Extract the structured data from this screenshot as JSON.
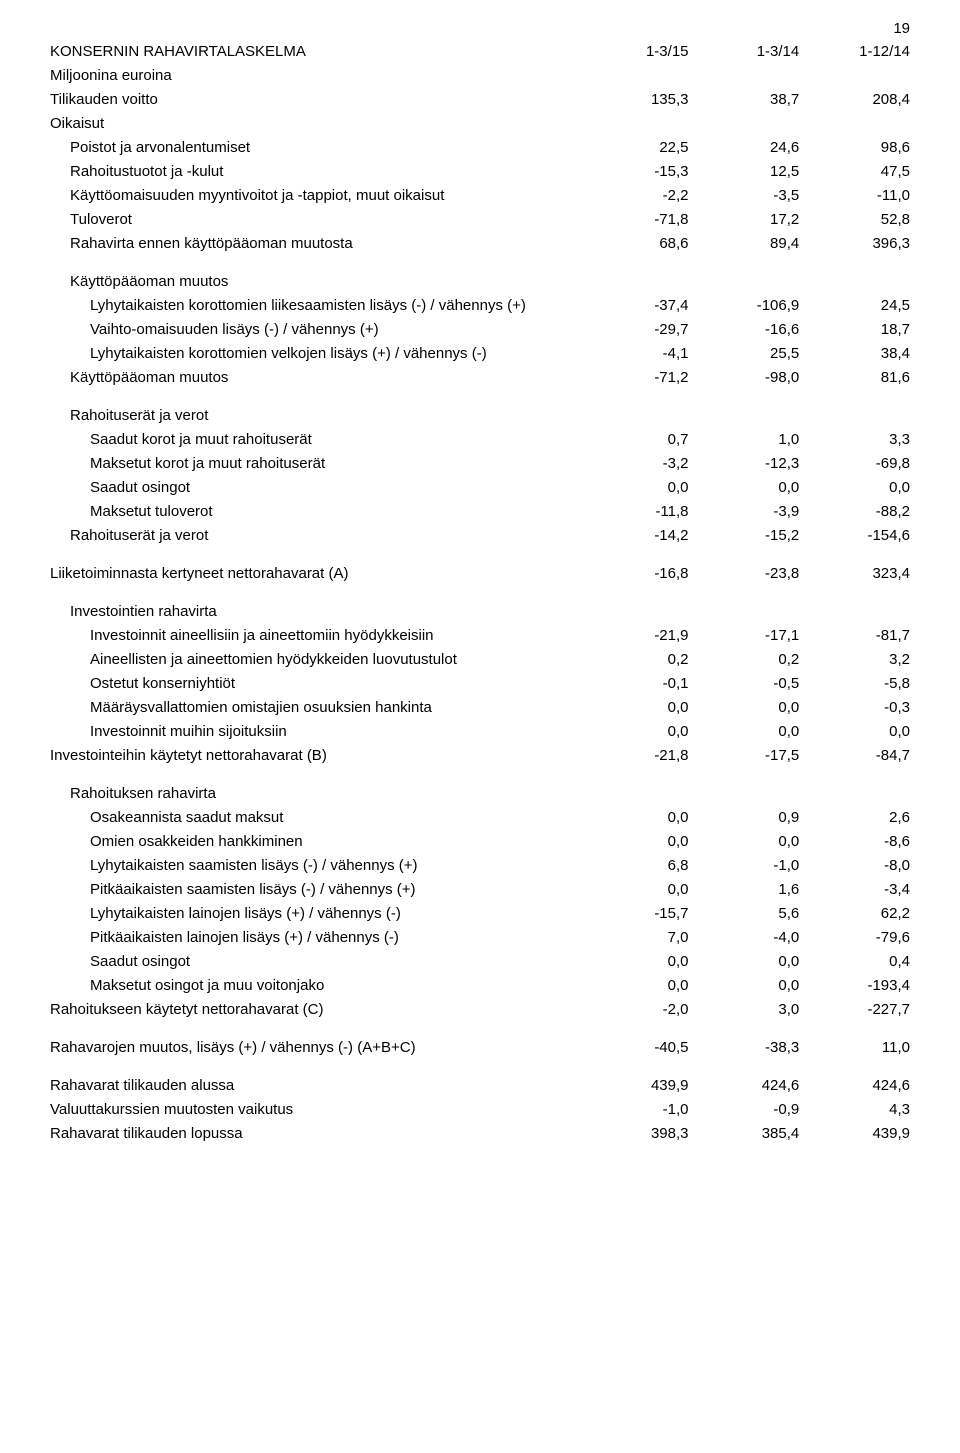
{
  "page_number": "19",
  "header": {
    "title": "KONSERNIN RAHAVIRTALASKELMA",
    "subtitle": "Miljoonina euroina",
    "cols": [
      "1-3/15",
      "1-3/14",
      "1-12/14"
    ]
  },
  "rows": [
    {
      "label": "Tilikauden voitto",
      "indent": 0,
      "v": [
        "135,3",
        "38,7",
        "208,4"
      ]
    },
    {
      "label": "Oikaisut",
      "indent": 0,
      "v": [
        "",
        "",
        ""
      ]
    },
    {
      "label": "Poistot ja arvonalentumiset",
      "indent": 1,
      "v": [
        "22,5",
        "24,6",
        "98,6"
      ]
    },
    {
      "label": "Rahoitustuotot ja -kulut",
      "indent": 1,
      "v": [
        "-15,3",
        "12,5",
        "47,5"
      ]
    },
    {
      "label": "Käyttöomaisuuden myyntivoitot ja -tappiot, muut oikaisut",
      "indent": 1,
      "v": [
        "-2,2",
        "-3,5",
        "-11,0"
      ]
    },
    {
      "label": "Tuloverot",
      "indent": 1,
      "v": [
        "-71,8",
        "17,2",
        "52,8"
      ]
    },
    {
      "label": "Rahavirta ennen käyttöpääoman muutosta",
      "indent": 1,
      "v": [
        "68,6",
        "89,4",
        "396,3"
      ]
    },
    {
      "spacer": true
    },
    {
      "label": "Käyttöpääoman muutos",
      "indent": 1,
      "v": [
        "",
        "",
        ""
      ]
    },
    {
      "label": "Lyhytaikaisten korottomien liikesaamisten lisäys (-) / vähennys (+)",
      "indent": 2,
      "v": [
        "-37,4",
        "-106,9",
        "24,5"
      ]
    },
    {
      "label": "Vaihto-omaisuuden lisäys (-) / vähennys (+)",
      "indent": 2,
      "v": [
        "-29,7",
        "-16,6",
        "18,7"
      ]
    },
    {
      "label": "Lyhytaikaisten korottomien velkojen lisäys (+) / vähennys (-)",
      "indent": 2,
      "v": [
        "-4,1",
        "25,5",
        "38,4"
      ]
    },
    {
      "label": "Käyttöpääoman muutos",
      "indent": 1,
      "v": [
        "-71,2",
        "-98,0",
        "81,6"
      ]
    },
    {
      "spacer": true
    },
    {
      "label": "Rahoituserät ja verot",
      "indent": 1,
      "v": [
        "",
        "",
        ""
      ]
    },
    {
      "label": "Saadut korot ja muut rahoituserät",
      "indent": 2,
      "v": [
        "0,7",
        "1,0",
        "3,3"
      ]
    },
    {
      "label": "Maksetut korot ja muut rahoituserät",
      "indent": 2,
      "v": [
        "-3,2",
        "-12,3",
        "-69,8"
      ]
    },
    {
      "label": "Saadut osingot",
      "indent": 2,
      "v": [
        "0,0",
        "0,0",
        "0,0"
      ]
    },
    {
      "label": "Maksetut tuloverot",
      "indent": 2,
      "v": [
        "-11,8",
        "-3,9",
        "-88,2"
      ]
    },
    {
      "label": "Rahoituserät ja verot",
      "indent": 1,
      "v": [
        "-14,2",
        "-15,2",
        "-154,6"
      ]
    },
    {
      "spacer": true
    },
    {
      "label": "Liiketoiminnasta kertyneet nettorahavarat (A)",
      "indent": 0,
      "v": [
        "-16,8",
        "-23,8",
        "323,4"
      ]
    },
    {
      "spacer": true
    },
    {
      "label": "Investointien rahavirta",
      "indent": 1,
      "v": [
        "",
        "",
        ""
      ]
    },
    {
      "label": "Investoinnit aineellisiin ja aineettomiin hyödykkeisiin",
      "indent": 2,
      "v": [
        "-21,9",
        "-17,1",
        "-81,7"
      ]
    },
    {
      "label": "Aineellisten ja aineettomien hyödykkeiden luovutustulot",
      "indent": 2,
      "v": [
        "0,2",
        "0,2",
        "3,2"
      ]
    },
    {
      "label": "Ostetut konserniyhtiöt",
      "indent": 2,
      "v": [
        "-0,1",
        "-0,5",
        "-5,8"
      ]
    },
    {
      "label": "Määräysvallattomien omistajien osuuksien hankinta",
      "indent": 2,
      "v": [
        "0,0",
        "0,0",
        "-0,3"
      ]
    },
    {
      "label": "Investoinnit muihin sijoituksiin",
      "indent": 2,
      "v": [
        "0,0",
        "0,0",
        "0,0"
      ]
    },
    {
      "label": "Investointeihin käytetyt nettorahavarat (B)",
      "indent": 0,
      "v": [
        "-21,8",
        "-17,5",
        "-84,7"
      ]
    },
    {
      "spacer": true
    },
    {
      "label": "Rahoituksen rahavirta",
      "indent": 1,
      "v": [
        "",
        "",
        ""
      ]
    },
    {
      "label": "Osakeannista saadut maksut",
      "indent": 2,
      "v": [
        "0,0",
        "0,9",
        "2,6"
      ]
    },
    {
      "label": "Omien osakkeiden hankkiminen",
      "indent": 2,
      "v": [
        "0,0",
        "0,0",
        "-8,6"
      ]
    },
    {
      "label": "Lyhytaikaisten saamisten lisäys (-) / vähennys (+)",
      "indent": 2,
      "v": [
        "6,8",
        "-1,0",
        "-8,0"
      ]
    },
    {
      "label": "Pitkäaikaisten saamisten lisäys (-) / vähennys (+)",
      "indent": 2,
      "v": [
        "0,0",
        "1,6",
        "-3,4"
      ]
    },
    {
      "label": "Lyhytaikaisten lainojen lisäys (+) / vähennys (-)",
      "indent": 2,
      "v": [
        "-15,7",
        "5,6",
        "62,2"
      ]
    },
    {
      "label": "Pitkäaikaisten lainojen lisäys (+) / vähennys (-)",
      "indent": 2,
      "v": [
        "7,0",
        "-4,0",
        "-79,6"
      ]
    },
    {
      "label": "Saadut osingot",
      "indent": 2,
      "v": [
        "0,0",
        "0,0",
        "0,4"
      ]
    },
    {
      "label": "Maksetut osingot ja muu voitonjako",
      "indent": 2,
      "v": [
        "0,0",
        "0,0",
        "-193,4"
      ]
    },
    {
      "label": "Rahoitukseen käytetyt nettorahavarat (C)",
      "indent": 0,
      "v": [
        "-2,0",
        "3,0",
        "-227,7"
      ]
    },
    {
      "spacer": true
    },
    {
      "label": "Rahavarojen muutos, lisäys (+) / vähennys (-) (A+B+C)",
      "indent": 0,
      "v": [
        "-40,5",
        "-38,3",
        "11,0"
      ]
    },
    {
      "spacer": true
    },
    {
      "label": "Rahavarat tilikauden alussa",
      "indent": 0,
      "v": [
        "439,9",
        "424,6",
        "424,6"
      ]
    },
    {
      "label": "Valuuttakurssien muutosten vaikutus",
      "indent": 0,
      "v": [
        "-1,0",
        "-0,9",
        "4,3"
      ]
    },
    {
      "label": "Rahavarat tilikauden lopussa",
      "indent": 0,
      "v": [
        "398,3",
        "385,4",
        "439,9"
      ]
    }
  ]
}
